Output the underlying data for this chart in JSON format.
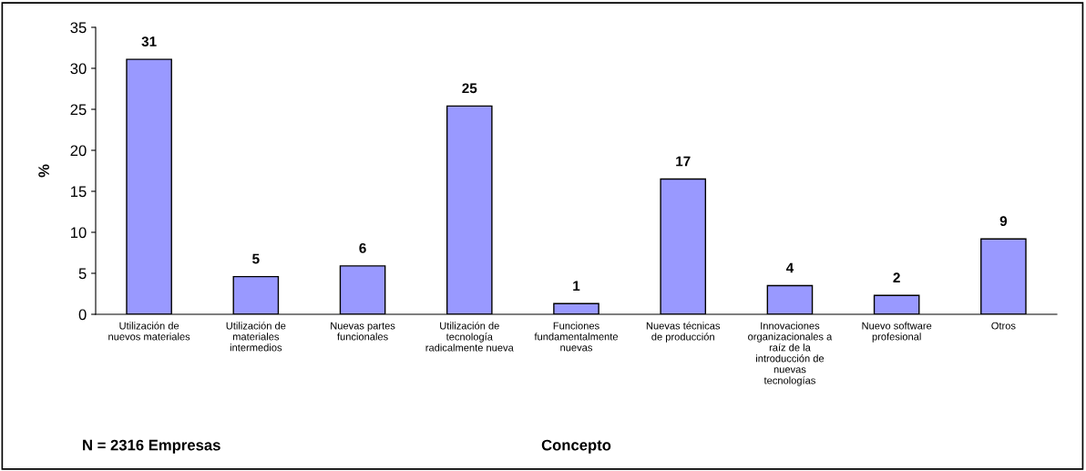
{
  "chart_data": {
    "type": "bar",
    "categories": [
      "Utilización de\nnuevos materiales",
      "Utilización de\nmateriales\nintermedios",
      "Nuevas partes\nfuncionales",
      "Utilización de\ntecnología\nradicalmente nueva",
      "Funciones\nfundamentalmente\nnuevas",
      "Nuevas técnicas\nde producción",
      "Innovaciones\norganizacionales a\nraíz de la\nintroducción de\nnuevas\ntecnologías",
      "Nuevo software\nprofesional",
      "Otros"
    ],
    "values": [
      31.1,
      4.6,
      5.9,
      25.4,
      1.3,
      16.5,
      3.5,
      2.3,
      9.2
    ],
    "value_labels": [
      "31",
      "5",
      "6",
      "25",
      "1",
      "17",
      "4",
      "2",
      "9"
    ],
    "color": "#9999ff",
    "xlabel": "Concepto",
    "ylabel": "%",
    "annotations": [
      "N = 2316 Empresas"
    ],
    "ylim": [
      0,
      35
    ],
    "yticks": [
      0,
      5,
      10,
      15,
      20,
      25,
      30,
      35
    ],
    "grid": false,
    "legend": false
  }
}
